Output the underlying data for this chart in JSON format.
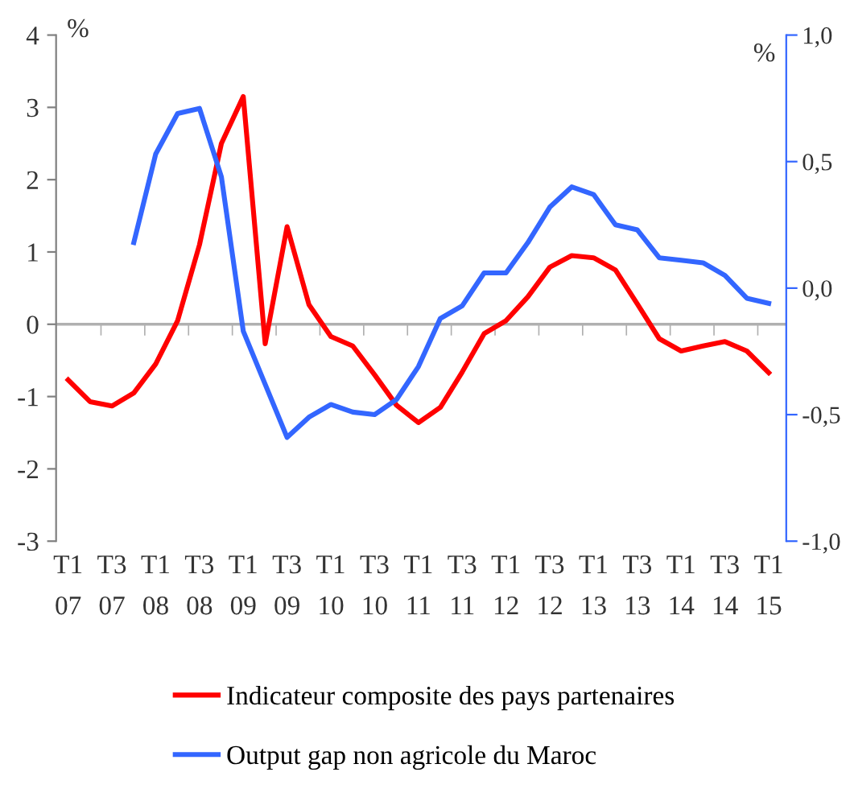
{
  "chart_data": {
    "type": "line",
    "categories": [
      "T1\n07",
      null,
      "T3\n07",
      null,
      "T1\n08",
      null,
      "T3\n08",
      null,
      "T1\n09",
      null,
      "T3\n09",
      null,
      "T1\n10",
      null,
      "T3\n10",
      null,
      "T1\n11",
      null,
      "T3\n11",
      null,
      "T1\n12",
      null,
      "T3\n12",
      null,
      "T1\n13",
      null,
      "T3\n13",
      null,
      "T1\n14",
      null,
      "T3\n14",
      null,
      "T1\n15"
    ],
    "series": [
      {
        "name": "Indicateur composite des pays partenaires",
        "color": "#ff0000",
        "values": [
          -0.77,
          -1.07,
          -1.13,
          -0.95,
          -0.55,
          0.05,
          1.1,
          2.5,
          3.15,
          -0.27,
          1.35,
          0.27,
          -0.17,
          -0.3,
          -0.7,
          -1.12,
          -1.36,
          -1.15,
          -0.66,
          -0.13,
          0.05,
          0.38,
          0.79,
          0.95,
          0.92,
          0.75,
          0.28,
          -0.2,
          -0.37,
          -0.3,
          -0.24,
          -0.37,
          -0.67
        ]
      },
      {
        "name": "Output gap non agricole du Maroc",
        "color": "#3366ff",
        "axis": "y2",
        "values": [
          null,
          null,
          null,
          0.18,
          0.53,
          0.69,
          0.71,
          0.44,
          -0.17,
          -0.38,
          -0.59,
          -0.51,
          -0.46,
          -0.49,
          -0.5,
          -0.44,
          -0.31,
          -0.12,
          -0.07,
          0.06,
          0.06,
          0.18,
          0.32,
          0.4,
          0.37,
          0.25,
          0.23,
          0.12,
          0.11,
          0.1,
          0.05,
          -0.04,
          -0.06
        ]
      }
    ],
    "ylabel": "%",
    "y2label": "%",
    "ylim": [
      -3,
      4
    ],
    "yticks": [
      -3,
      -2,
      -1,
      0,
      1,
      2,
      3,
      4
    ],
    "y2lim": [
      -1,
      1
    ],
    "y2ticks": [
      {
        "value": -1,
        "label": "-1,0"
      },
      {
        "value": -0.5,
        "label": "-0,5"
      },
      {
        "value": 0,
        "label": "0,0"
      },
      {
        "value": 0.5,
        "label": "0,5"
      },
      {
        "value": 1,
        "label": "1,0"
      }
    ],
    "ref_lines": [
      {
        "axis": "y",
        "value": 0,
        "color": "#b0b0b0"
      }
    ],
    "legend": "bottom",
    "grid": false,
    "marker": "none",
    "line_style": "solid"
  }
}
